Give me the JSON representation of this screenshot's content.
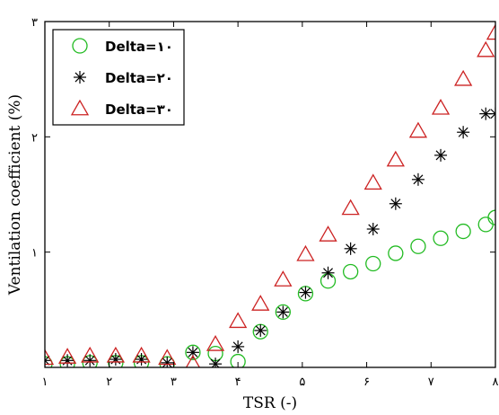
{
  "chart_data": {
    "type": "scatter",
    "xlabel": "TSR (-)",
    "ylabel": "Ventilation coefficient (%)",
    "xlim": [
      1,
      8
    ],
    "ylim": [
      0,
      3
    ],
    "xticks": [
      1,
      2,
      3,
      4,
      5,
      6,
      7,
      8
    ],
    "xtick_labels": [
      "۱",
      "۲",
      "۳",
      "۴",
      "۵",
      "۶",
      "۷",
      "۸"
    ],
    "yticks": [
      1,
      2,
      3
    ],
    "ytick_labels": [
      "۱",
      "۲",
      "۳"
    ],
    "grid": false,
    "legend_position": "top-left",
    "series": [
      {
        "name": "Delta=۱۰",
        "marker": "circle",
        "color": "#22bb22",
        "x": [
          1.0,
          1.35,
          1.7,
          2.1,
          2.5,
          2.9,
          3.3,
          3.65,
          4.0,
          4.35,
          4.7,
          5.05,
          5.4,
          5.75,
          6.1,
          6.45,
          6.8,
          7.15,
          7.5,
          7.85,
          8.0
        ],
        "y": [
          0.03,
          0.03,
          0.04,
          0.04,
          0.04,
          0.03,
          0.13,
          0.12,
          0.05,
          0.31,
          0.48,
          0.64,
          0.75,
          0.83,
          0.9,
          0.99,
          1.05,
          1.12,
          1.18,
          1.24,
          1.3
        ]
      },
      {
        "name": "Delta=۲۰",
        "marker": "asterisk",
        "color": "#000000",
        "x": [
          1.0,
          1.35,
          1.7,
          2.1,
          2.5,
          2.9,
          3.3,
          3.65,
          4.0,
          4.35,
          4.7,
          5.05,
          5.4,
          5.75,
          6.1,
          6.45,
          6.8,
          7.15,
          7.5,
          7.85,
          8.0
        ],
        "y": [
          0.06,
          0.06,
          0.06,
          0.07,
          0.07,
          0.04,
          0.13,
          0.03,
          0.18,
          0.32,
          0.48,
          0.65,
          0.82,
          1.03,
          1.2,
          1.42,
          1.63,
          1.84,
          2.04,
          2.2,
          2.2
        ]
      },
      {
        "name": "Delta=۳۰",
        "marker": "triangle",
        "color": "#cc2222",
        "x": [
          1.0,
          1.35,
          1.7,
          2.1,
          2.5,
          2.9,
          3.3,
          3.65,
          4.0,
          4.35,
          4.7,
          5.05,
          5.4,
          5.75,
          6.1,
          6.45,
          6.8,
          7.15,
          7.5,
          7.85,
          8.0
        ],
        "y": [
          0.08,
          0.09,
          0.1,
          0.1,
          0.1,
          0.08,
          0.03,
          0.2,
          0.4,
          0.55,
          0.76,
          0.98,
          1.15,
          1.38,
          1.6,
          1.8,
          2.05,
          2.25,
          2.5,
          2.75,
          2.9
        ]
      }
    ]
  }
}
